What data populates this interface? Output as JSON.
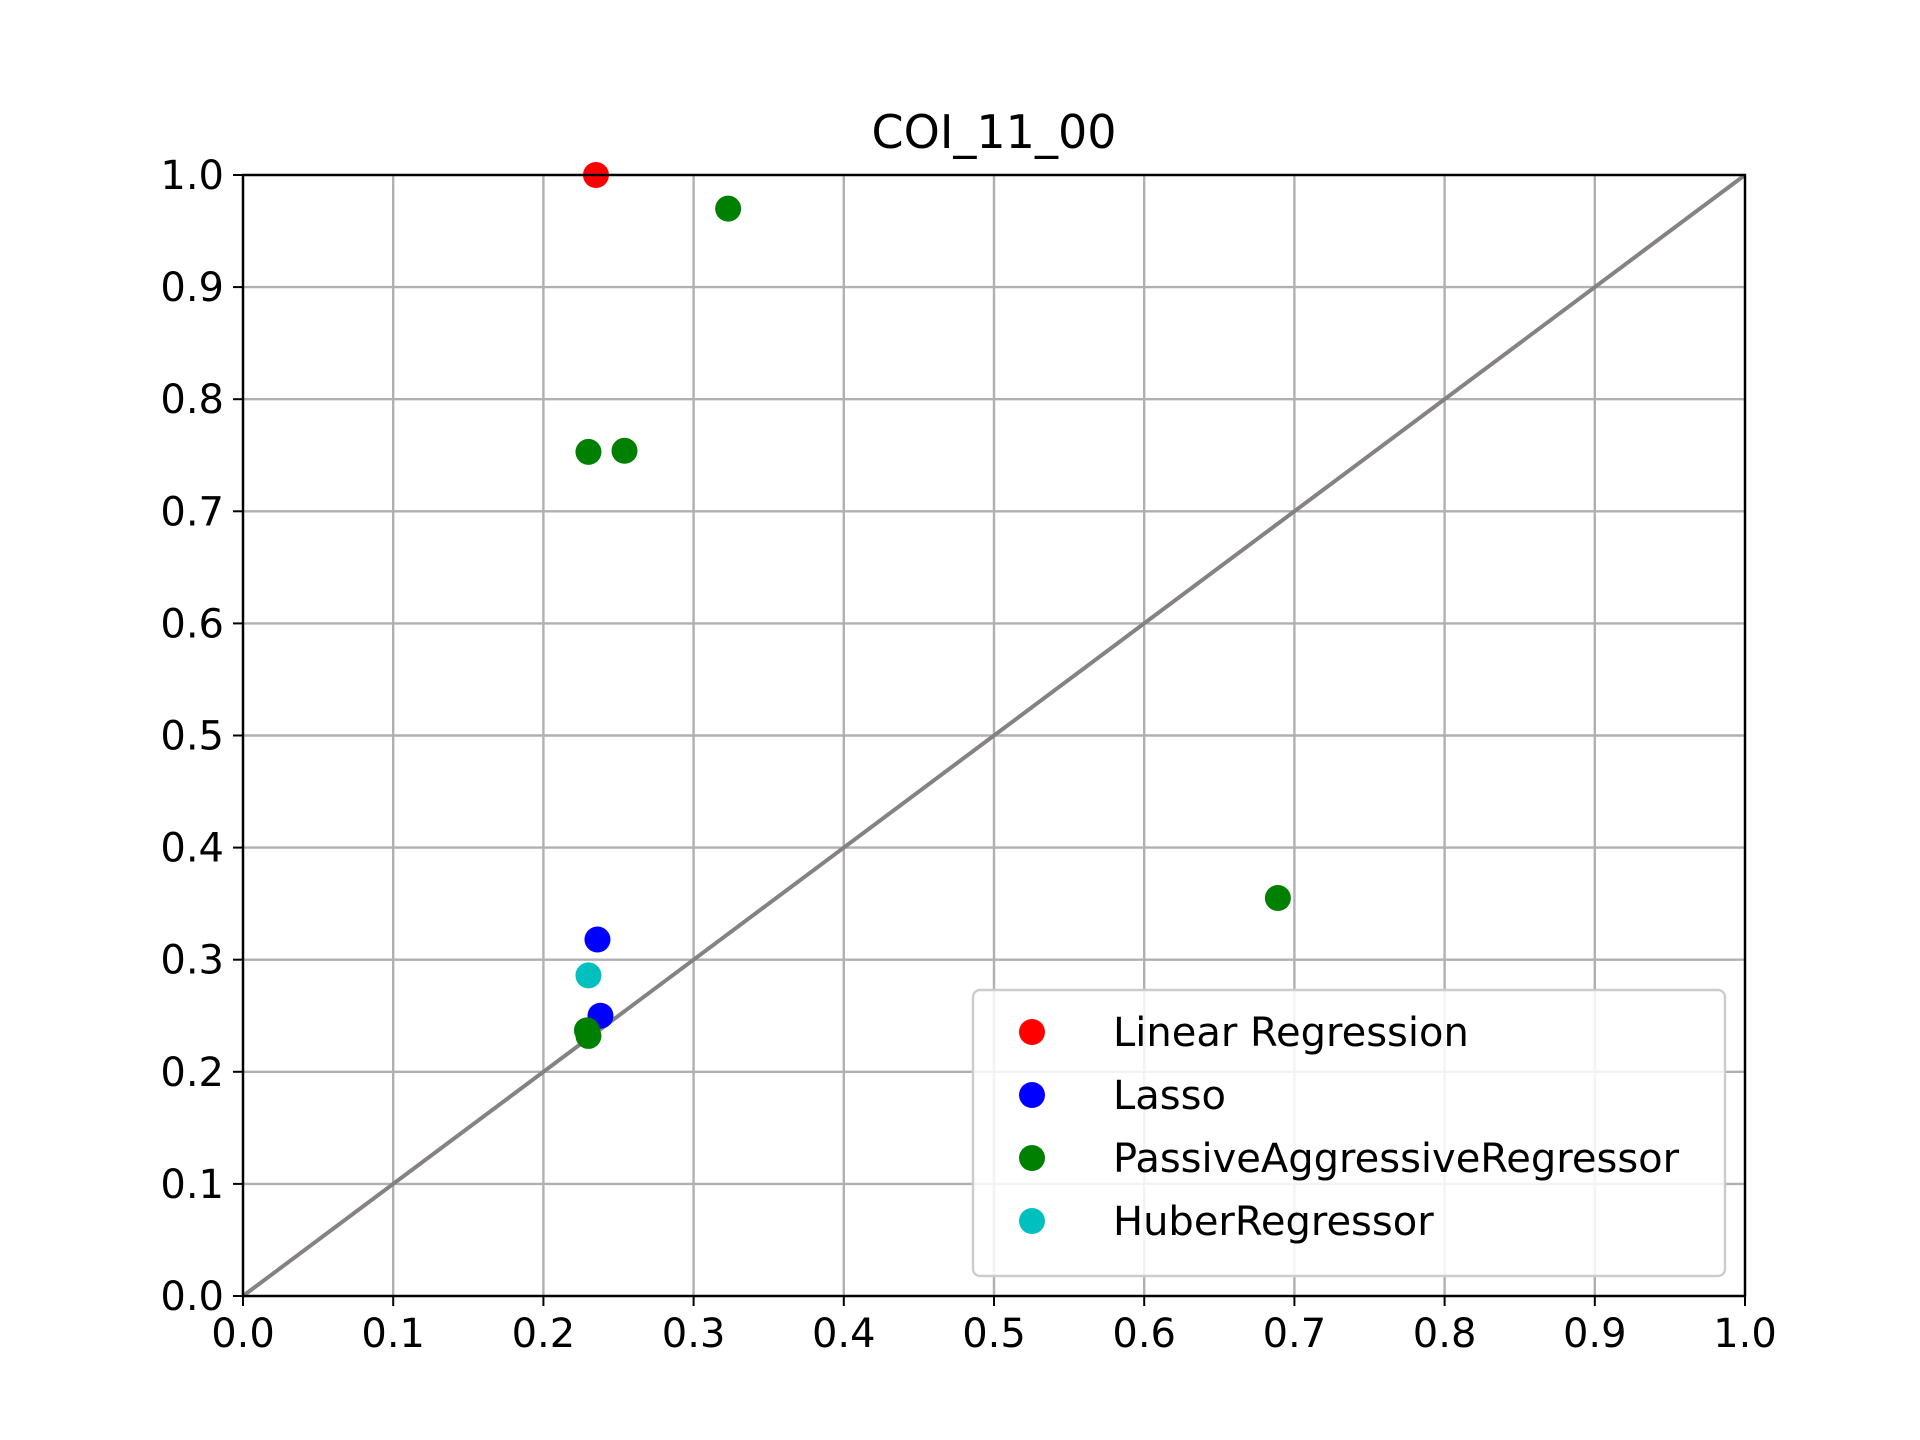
{
  "chart_data": {
    "type": "scatter",
    "title": "COI_11_00",
    "xlabel": "",
    "ylabel": "",
    "xlim": [
      0.0,
      1.0
    ],
    "ylim": [
      0.0,
      1.0
    ],
    "x_ticks": [
      "0.0",
      "0.1",
      "0.2",
      "0.3",
      "0.4",
      "0.5",
      "0.6",
      "0.7",
      "0.8",
      "0.9",
      "1.0"
    ],
    "y_ticks": [
      "0.0",
      "0.1",
      "0.2",
      "0.3",
      "0.4",
      "0.5",
      "0.6",
      "0.7",
      "0.8",
      "0.9",
      "1.0"
    ],
    "grid": true,
    "legend_position": "lower-right",
    "reference_line": {
      "from": [
        0.0,
        0.0
      ],
      "to": [
        1.0,
        1.0
      ],
      "color": "#868283"
    },
    "series": [
      {
        "name": "Linear Regression",
        "color": "#ff0000",
        "points": [
          [
            0.235,
            1.0
          ]
        ]
      },
      {
        "name": "Lasso",
        "color": "#0000ff",
        "points": [
          [
            0.236,
            0.318
          ],
          [
            0.238,
            0.25
          ]
        ]
      },
      {
        "name": "PassiveAggressiveRegressor",
        "color": "#008000",
        "points": [
          [
            0.323,
            0.97
          ],
          [
            0.23,
            0.753
          ],
          [
            0.254,
            0.754
          ],
          [
            0.689,
            0.355
          ],
          [
            0.229,
            0.237
          ],
          [
            0.23,
            0.232
          ]
        ]
      },
      {
        "name": "HuberRegressor",
        "color": "#00bfbf",
        "points": [
          [
            0.23,
            0.286
          ]
        ]
      }
    ]
  }
}
